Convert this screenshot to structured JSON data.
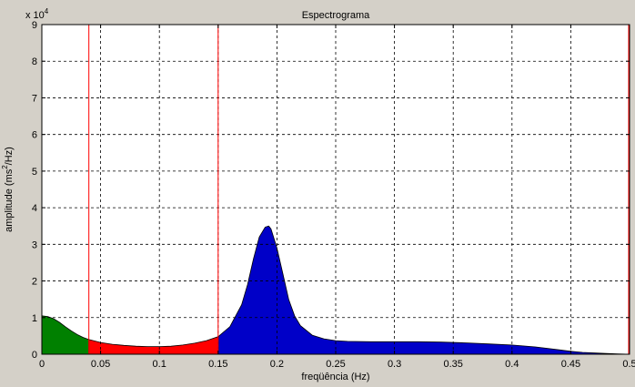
{
  "chart_data": {
    "type": "area",
    "title": "Espectrograma",
    "xlabel": "freqüência (Hz)",
    "ylabel_main": "amplitude (ms",
    "ylabel_sup": "2",
    "ylabel_end": "/Hz)",
    "exponent_label": "x 10",
    "exponent_power": "4",
    "xlim": [
      0,
      0.5
    ],
    "ylim": [
      0,
      9
    ],
    "y_scale_factor": 10000,
    "xticks": [
      0,
      0.05,
      0.1,
      0.15,
      0.2,
      0.25,
      0.3,
      0.35,
      0.4,
      0.45,
      0.5
    ],
    "xtick_labels": [
      "0",
      "0.05",
      "0.1",
      "0.15",
      "0.2",
      "0.25",
      "0.3",
      "0.35",
      "0.4",
      "0.45",
      "0.5"
    ],
    "yticks": [
      0,
      1,
      2,
      3,
      4,
      5,
      6,
      7,
      8,
      9
    ],
    "ytick_labels": [
      "0",
      "1",
      "2",
      "3",
      "4",
      "5",
      "6",
      "7",
      "8",
      "9"
    ],
    "grid": true,
    "band_limits": [
      0.04,
      0.15,
      0.5
    ],
    "band_limit_color": "#ff0000",
    "bands": [
      {
        "range": [
          0,
          0.04
        ],
        "color": "#008000"
      },
      {
        "range": [
          0.04,
          0.15
        ],
        "color": "#ff0000"
      },
      {
        "range": [
          0.15,
          0.5
        ],
        "color": "#0000c8"
      }
    ],
    "x": [
      0,
      0.005,
      0.01,
      0.015,
      0.02,
      0.025,
      0.03,
      0.035,
      0.04,
      0.05,
      0.06,
      0.07,
      0.08,
      0.09,
      0.1,
      0.11,
      0.12,
      0.13,
      0.14,
      0.15,
      0.16,
      0.17,
      0.175,
      0.18,
      0.185,
      0.19,
      0.193,
      0.195,
      0.2,
      0.205,
      0.21,
      0.215,
      0.22,
      0.23,
      0.24,
      0.25,
      0.26,
      0.28,
      0.3,
      0.32,
      0.34,
      0.36,
      0.38,
      0.4,
      0.42,
      0.44,
      0.45,
      0.46,
      0.48,
      0.49,
      0.5
    ],
    "y": [
      1.05,
      1.03,
      0.97,
      0.87,
      0.75,
      0.64,
      0.54,
      0.46,
      0.4,
      0.32,
      0.27,
      0.24,
      0.22,
      0.21,
      0.21,
      0.22,
      0.25,
      0.3,
      0.37,
      0.48,
      0.75,
      1.35,
      1.9,
      2.6,
      3.2,
      3.47,
      3.5,
      3.42,
      2.9,
      2.2,
      1.5,
      1.05,
      0.78,
      0.52,
      0.42,
      0.37,
      0.35,
      0.34,
      0.34,
      0.34,
      0.33,
      0.31,
      0.28,
      0.25,
      0.2,
      0.12,
      0.08,
      0.05,
      0.02,
      0.01,
      0.0
    ]
  }
}
